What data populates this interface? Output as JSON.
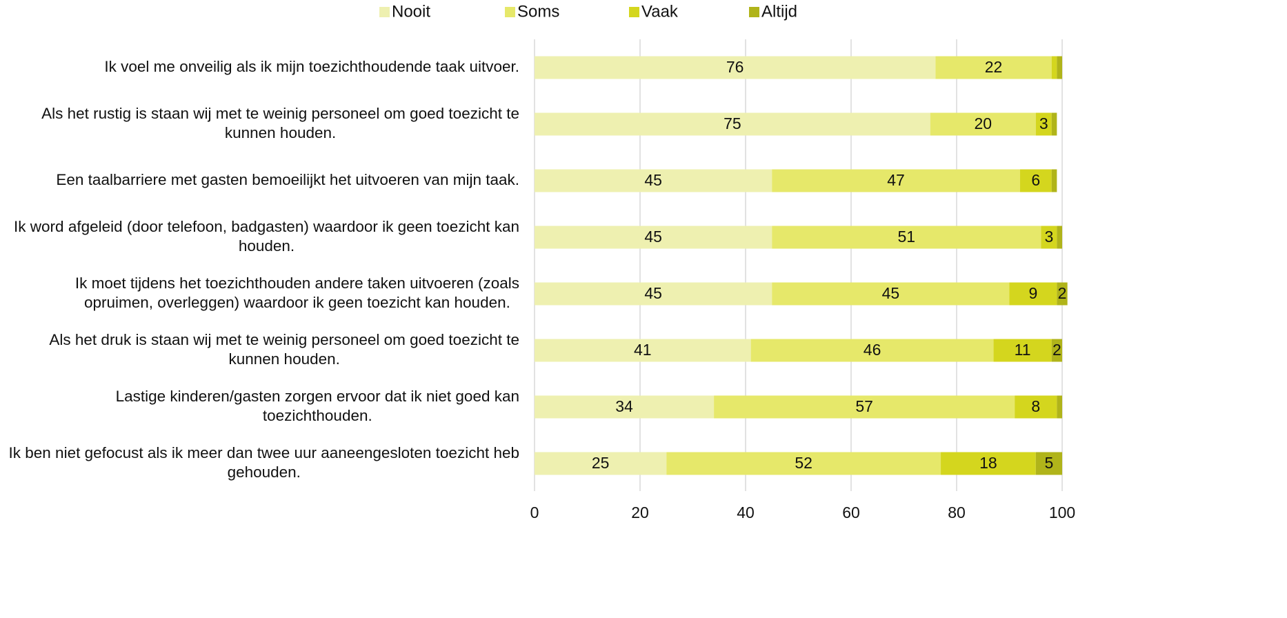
{
  "chart_data": {
    "type": "stacked_barh",
    "categories": [
      "Ik voel me onveilig als ik mijn toezichthoudende taak uitvoer.",
      "Als het rustig is staan wij met te weinig personeel om goed toezicht te kunnen houden.",
      "Een taalbarriere met gasten bemoeilijkt het uitvoeren van mijn taak.",
      "Ik word afgeleid (door telefoon, badgasten) waardoor ik geen toezicht kan houden.",
      "Ik moet tijdens het toezichthouden andere taken uitvoeren (zoals opruimen, overleggen) waardoor ik geen toezicht kan houden.",
      "Als het druk is staan wij met te weinig personeel om goed toezicht te kunnen houden.",
      "Lastige kinderen/gasten zorgen ervoor dat ik niet goed kan toezichthouden.",
      "Ik ben niet gefocust als ik meer dan twee uur aaneengesloten toezicht heb gehouden."
    ],
    "series": [
      {
        "name": "Nooit",
        "color": "#eef0b0",
        "values": [
          76,
          75,
          45,
          45,
          45,
          41,
          34,
          25
        ]
      },
      {
        "name": "Soms",
        "color": "#e6e86a",
        "values": [
          22,
          20,
          47,
          51,
          45,
          46,
          57,
          52
        ]
      },
      {
        "name": "Vaak",
        "color": "#d4d61e",
        "values": [
          1,
          3,
          6,
          3,
          9,
          11,
          8,
          18
        ],
        "value_labels": [
          null,
          "3",
          "6",
          "3",
          "9",
          "11",
          "8",
          "18"
        ]
      },
      {
        "name": "Altijd",
        "color": "#b0b41a",
        "values": [
          1,
          1,
          1,
          1,
          2,
          2,
          1,
          5
        ],
        "value_labels": [
          null,
          null,
          null,
          null,
          "2",
          "2",
          null,
          "5"
        ]
      }
    ],
    "xlim": [
      0,
      100
    ],
    "xticks": [
      0,
      20,
      40,
      60,
      80,
      100
    ],
    "grid": true,
    "legend": "top"
  }
}
